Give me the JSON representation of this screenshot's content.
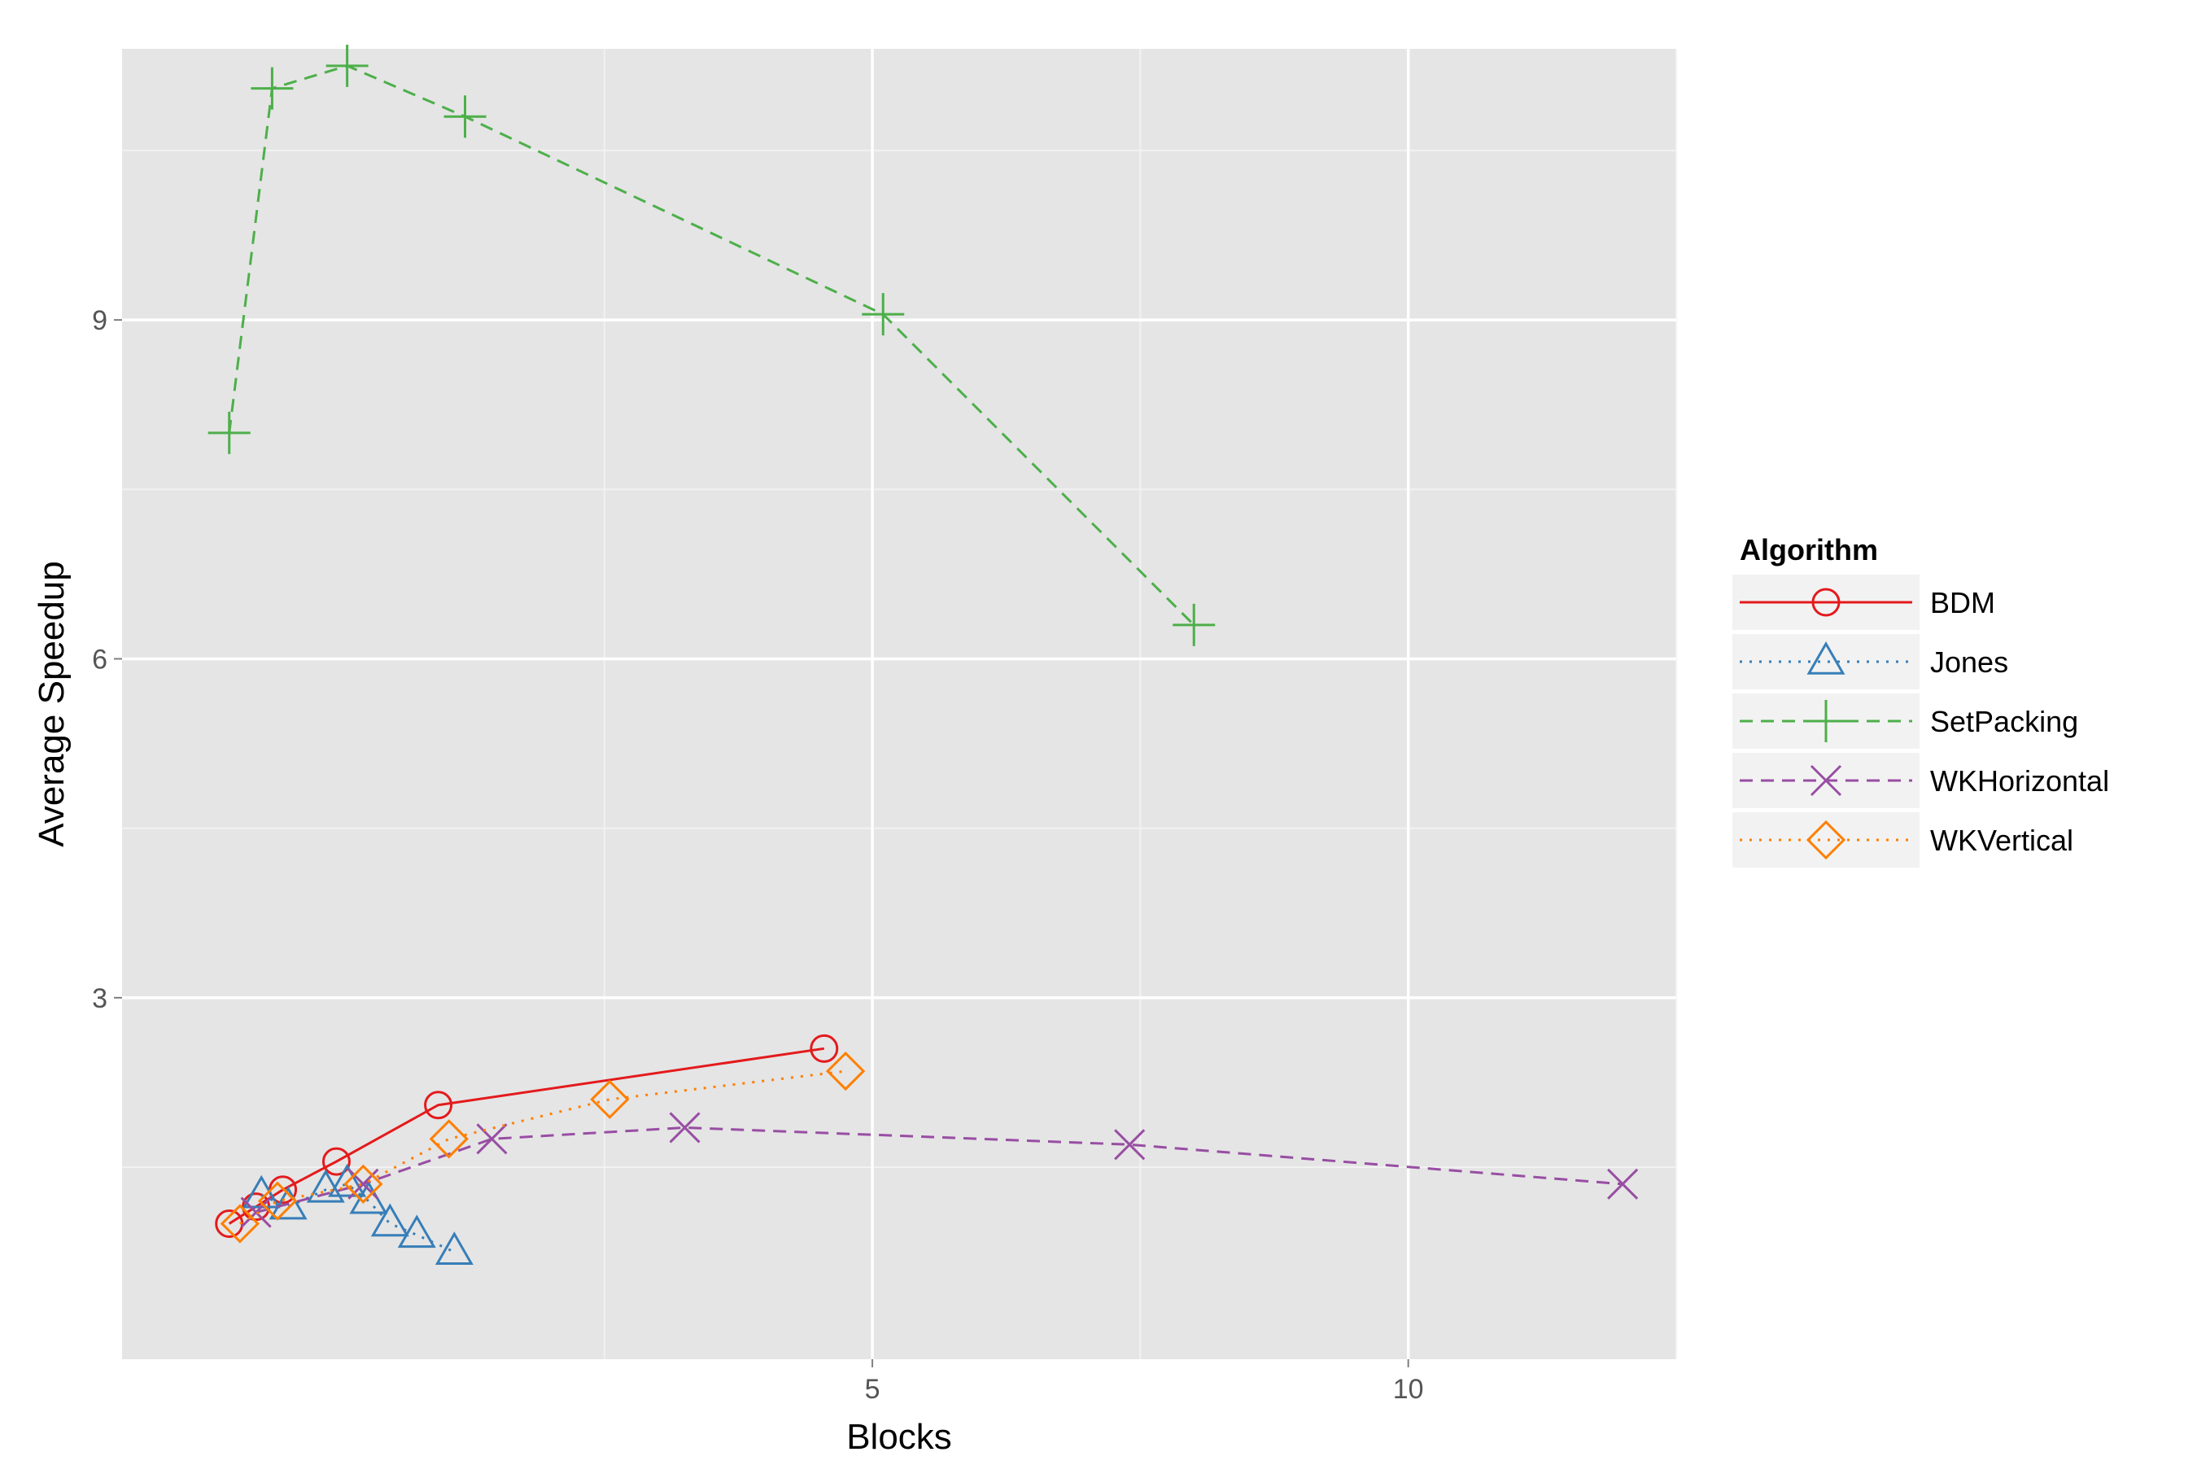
{
  "chart_data": {
    "type": "line",
    "xlabel": "Blocks",
    "ylabel": "Average Speedup",
    "xlim": [
      -2.0,
      12.5
    ],
    "ylim": [
      -0.2,
      11.4
    ],
    "x_ticks": [
      5,
      10
    ],
    "y_ticks": [
      3,
      6,
      9
    ],
    "x_tick_labels": [
      "5",
      "10"
    ],
    "y_tick_labels": [
      "3",
      "6",
      "9"
    ],
    "grid": true,
    "legend": {
      "title": "Algorithm",
      "position": "right"
    },
    "series": [
      {
        "name": "BDM",
        "color": "#E41A1C",
        "marker": "circle",
        "dash": "solid",
        "x": [
          -1.0,
          -0.75,
          -0.5,
          0.0,
          0.95,
          4.55
        ],
        "y": [
          1.0,
          1.15,
          1.3,
          1.55,
          2.05,
          2.55
        ]
      },
      {
        "name": "Jones",
        "color": "#377EB8",
        "marker": "triangle",
        "dash": "dotted",
        "x": [
          -0.7,
          -0.45,
          -0.1,
          0.1,
          0.3,
          0.5,
          0.75,
          1.1
        ],
        "y": [
          1.25,
          1.15,
          1.3,
          1.35,
          1.2,
          1.0,
          0.9,
          0.75
        ]
      },
      {
        "name": "SetPacking",
        "color": "#4DAF4A",
        "marker": "plus",
        "dash": "dashed",
        "x": [
          -1.0,
          -0.6,
          0.1,
          1.2,
          5.1,
          8.0
        ],
        "y": [
          8.0,
          11.05,
          11.25,
          10.8,
          9.05,
          6.3
        ]
      },
      {
        "name": "WKHorizontal",
        "color": "#984EA3",
        "marker": "x",
        "dash": "dashed",
        "x": [
          -0.75,
          0.25,
          1.45,
          3.25,
          7.4,
          12.0
        ],
        "y": [
          1.1,
          1.35,
          1.75,
          1.85,
          1.7,
          1.35
        ]
      },
      {
        "name": "WKVertical",
        "color": "#FF7F00",
        "marker": "diamond",
        "dash": "dotted",
        "x": [
          -0.9,
          -0.55,
          0.25,
          1.05,
          2.55,
          4.75
        ],
        "y": [
          1.0,
          1.2,
          1.35,
          1.75,
          2.1,
          2.35
        ]
      }
    ]
  }
}
